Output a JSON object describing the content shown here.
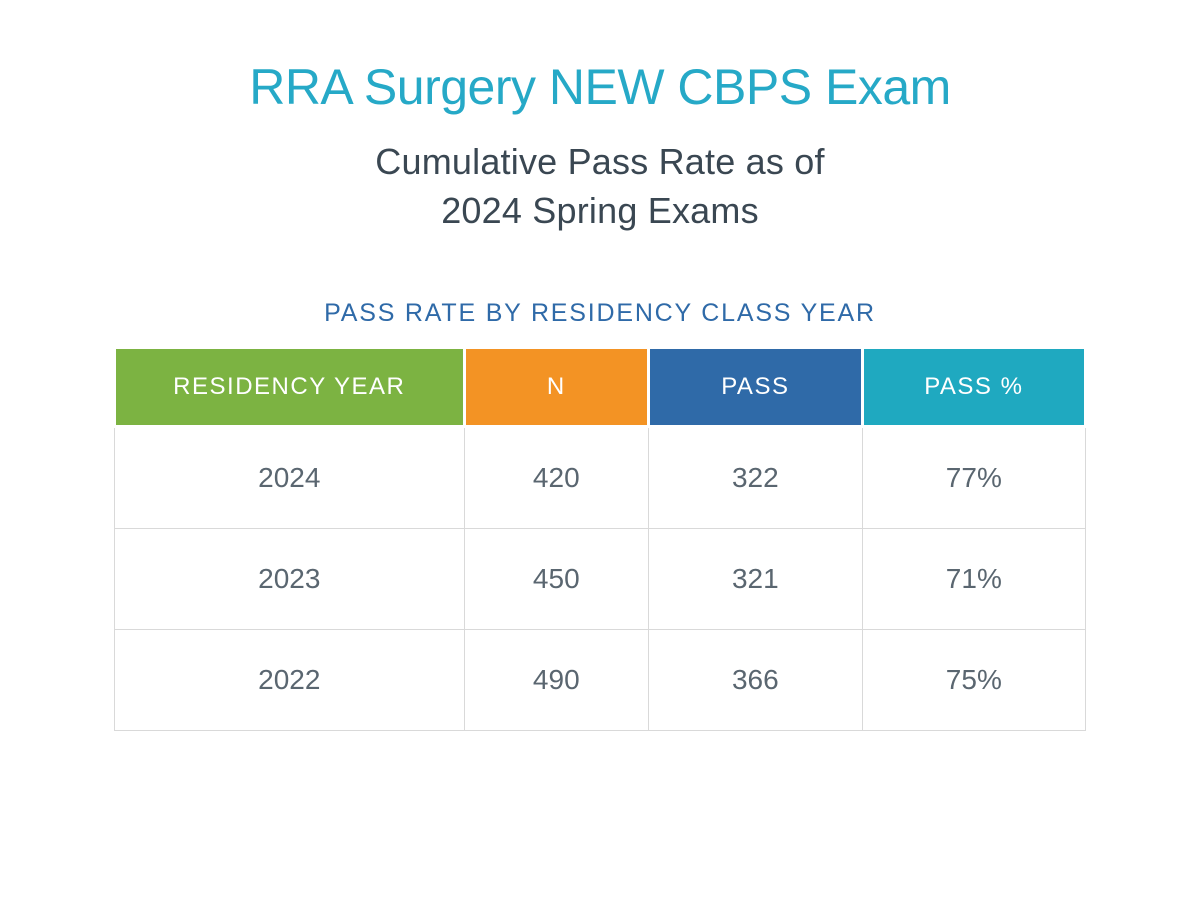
{
  "colors": {
    "title": "#26a9c7",
    "subtitle": "#3a4752",
    "section_label": "#2f6aa8",
    "body_text": "#5a6670",
    "header_green": "#7cb342",
    "header_orange": "#f39324",
    "header_blue": "#2f6aa8",
    "header_teal": "#1fa9c0",
    "cell_border": "#d9d9d9",
    "background": "#ffffff"
  },
  "title": "RRA Surgery NEW CBPS Exam",
  "subtitle_line1": "Cumulative Pass Rate as of",
  "subtitle_line2": "2024 Spring Exams",
  "section_label": "PASS RATE BY RESIDENCY CLASS YEAR",
  "table": {
    "columns": [
      {
        "key": "year",
        "label": "RESIDENCY YEAR",
        "bg_key": "header_green"
      },
      {
        "key": "n",
        "label": "N",
        "bg_key": "header_orange"
      },
      {
        "key": "pass",
        "label": "PASS",
        "bg_key": "header_blue"
      },
      {
        "key": "pass_pc",
        "label": "PASS %",
        "bg_key": "header_teal"
      }
    ],
    "rows": [
      {
        "year": "2024",
        "n": "420",
        "pass": "322",
        "pass_pc": "77%"
      },
      {
        "year": "2023",
        "n": "450",
        "pass": "321",
        "pass_pc": "71%"
      },
      {
        "year": "2022",
        "n": "490",
        "pass": "366",
        "pass_pc": "75%"
      }
    ]
  }
}
